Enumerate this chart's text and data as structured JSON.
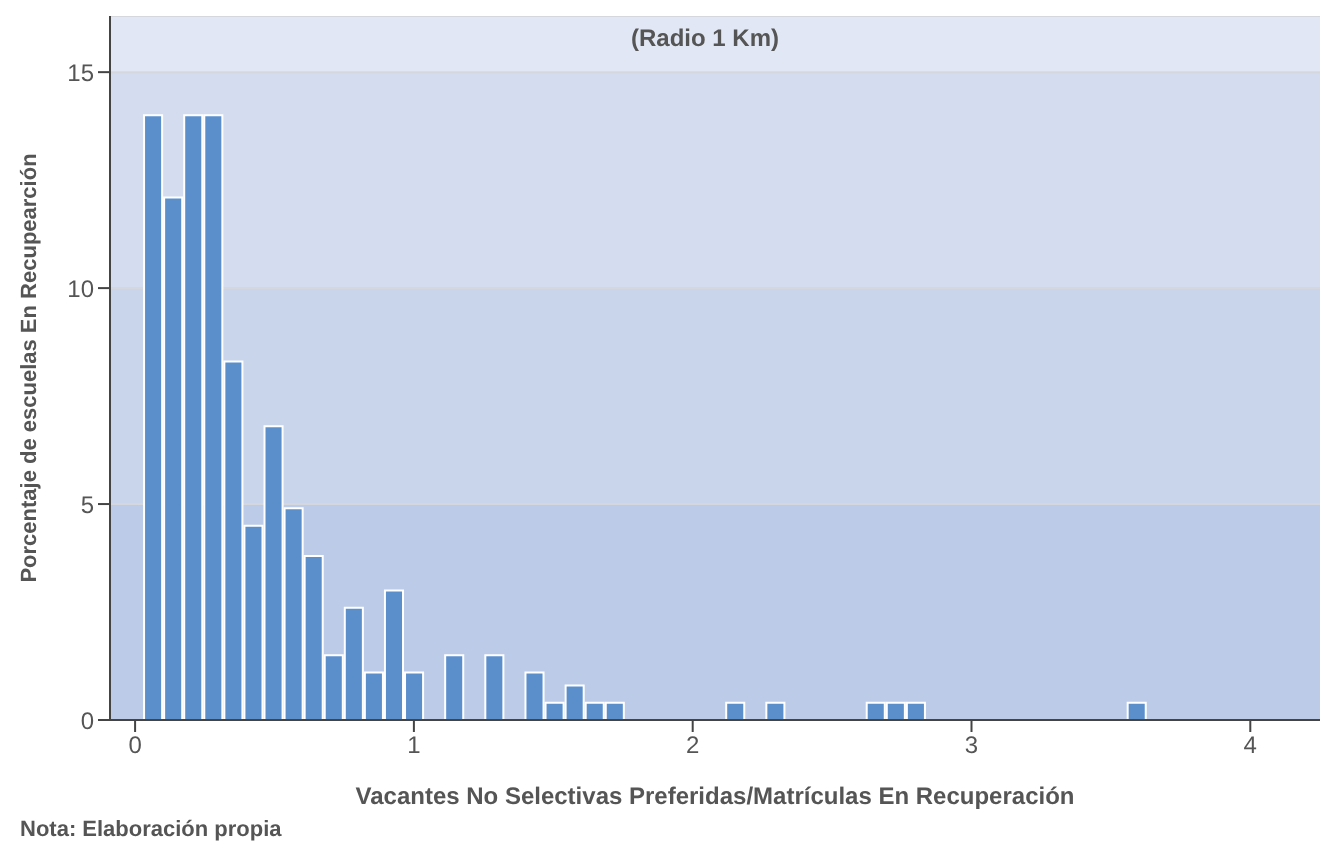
{
  "chart_data": {
    "type": "histogram",
    "title": "(Radio 1 Km)",
    "xlabel": "Vacantes No Selectivas Preferidas/Matrículas En Recuperación",
    "ylabel": "Porcentaje de escuelas En Recupearción",
    "annotations": [
      "Nota: Elaboración propia"
    ],
    "bins": [
      0.025,
      0.097,
      0.169,
      0.241,
      0.313,
      0.385,
      0.457,
      0.529,
      0.601,
      0.673,
      0.745,
      0.817,
      0.889,
      0.961,
      1.033,
      1.105,
      1.177,
      1.249,
      1.321,
      1.393,
      1.465,
      1.537,
      1.609,
      1.681,
      1.753,
      1.825,
      1.897,
      1.969,
      2.041,
      2.113,
      2.185,
      2.257,
      2.329,
      2.401,
      2.473,
      2.545,
      2.617,
      2.689,
      2.761,
      2.833,
      2.905,
      2.977,
      3.049,
      3.121,
      3.193,
      3.265,
      3.337,
      3.409,
      3.481,
      3.553,
      3.625
    ],
    "values": [
      14,
      12.1,
      14,
      14,
      8.3,
      4.5,
      6.8,
      4.9,
      3.8,
      1.5,
      2.6,
      1.1,
      3.0,
      1.1,
      0,
      1.5,
      0,
      1.5,
      0,
      1.1,
      0.4,
      0.8,
      0.4,
      0.4,
      0,
      0,
      0,
      0,
      0,
      0.4,
      0,
      0.4,
      0,
      0,
      0,
      0,
      0.4,
      0.4,
      0.4,
      0,
      0,
      0,
      0,
      0,
      0,
      0,
      0,
      0,
      0,
      0.4
    ],
    "color": "#5b8fcc",
    "xlim": [
      -0.09,
      4.25
    ],
    "xticks": [
      0,
      1,
      2,
      3,
      4
    ],
    "ylim": [
      0,
      16.3
    ],
    "yticks": [
      0,
      5,
      10,
      15
    ],
    "grid": "y"
  }
}
